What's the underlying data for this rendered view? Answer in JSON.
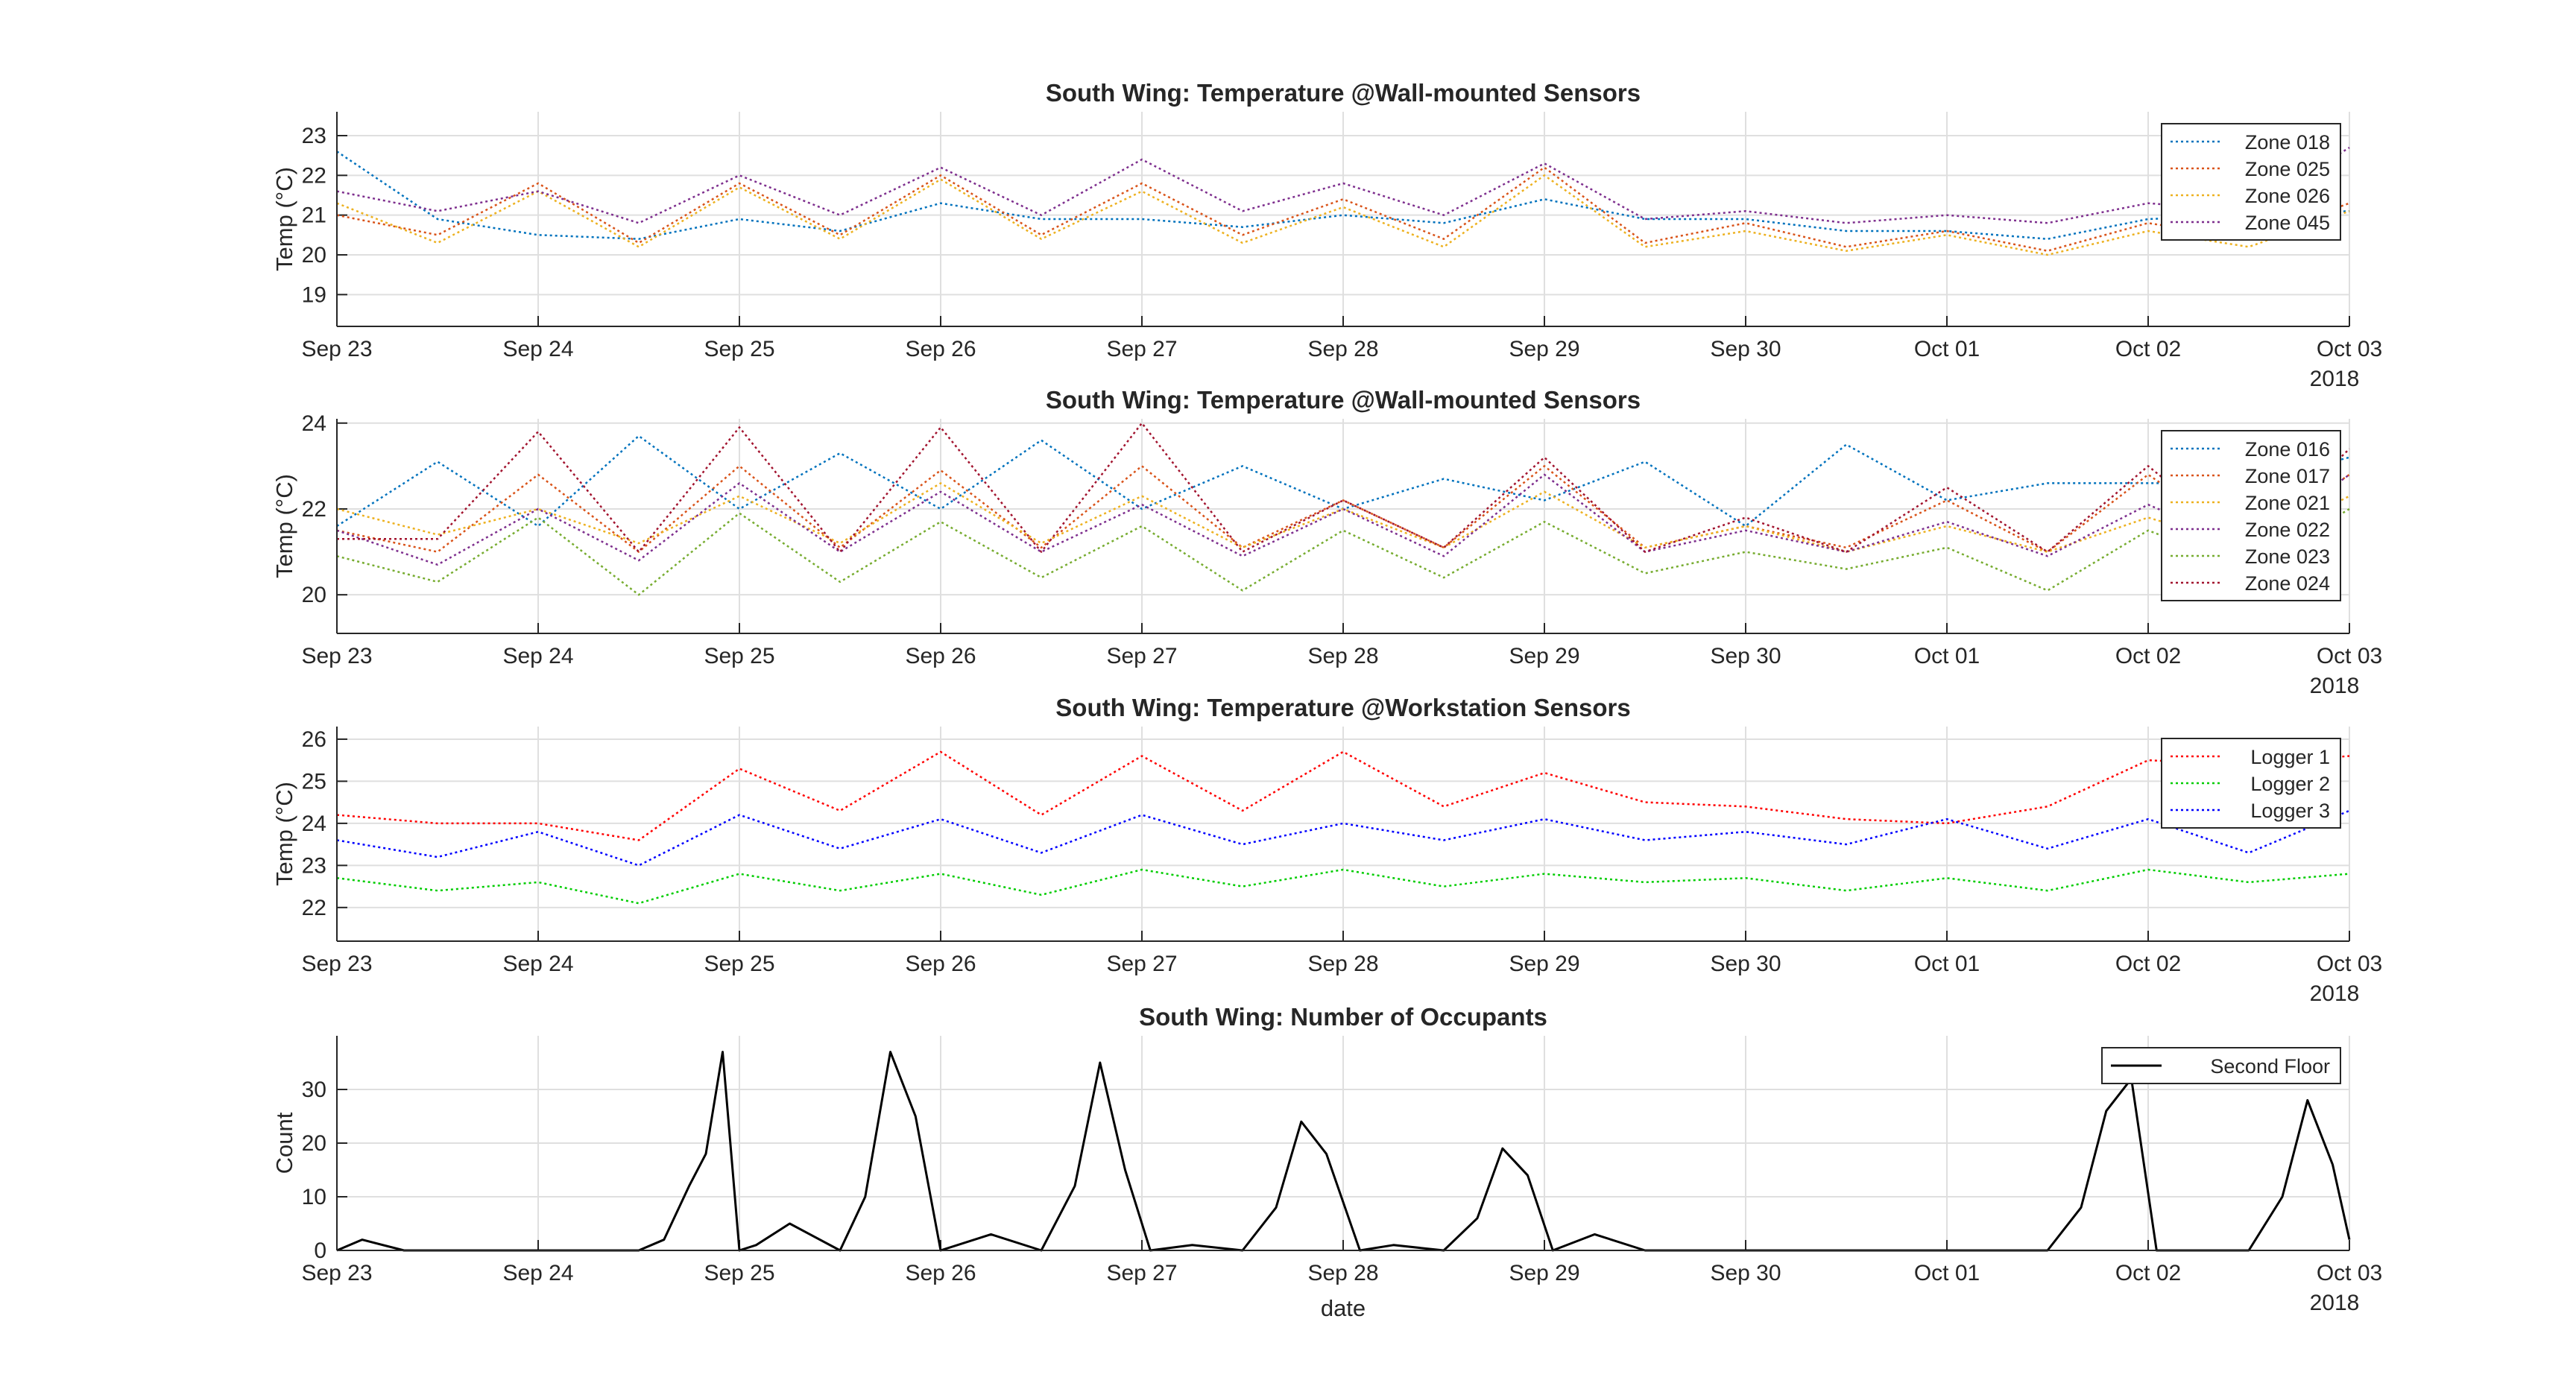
{
  "figure": {
    "x_tick_labels": [
      "Sep 23",
      "Sep 24",
      "Sep 25",
      "Sep 26",
      "Sep 27",
      "Sep 28",
      "Sep 29",
      "Sep 30",
      "Oct 01",
      "Oct 02",
      "Oct 03"
    ],
    "year_label": "2018",
    "bottom_xlabel": "date"
  },
  "chart_data": [
    {
      "type": "line",
      "title": "South Wing: Temperature @Wall-mounted Sensors",
      "xlabel": "",
      "ylabel": "Temp (°C)",
      "xlim": [
        "2018-09-23",
        "2018-10-03"
      ],
      "ylim": [
        18.2,
        23.6
      ],
      "yticks": [
        19,
        20,
        21,
        22,
        23
      ],
      "grid": true,
      "legend_location": "top-right",
      "line_style": "dotted",
      "series": [
        {
          "name": "Zone 018",
          "color": "#0072BD",
          "x": [
            "2018-09-23 00:00",
            "2018-09-23 12:00",
            "2018-09-24 00:00",
            "2018-09-24 12:00",
            "2018-09-25 00:00",
            "2018-09-25 12:00",
            "2018-09-26 00:00",
            "2018-09-26 12:00",
            "2018-09-27 00:00",
            "2018-09-27 12:00",
            "2018-09-28 00:00",
            "2018-09-28 12:00",
            "2018-09-29 00:00",
            "2018-09-29 12:00",
            "2018-09-30 00:00",
            "2018-09-30 12:00",
            "2018-10-01 00:00",
            "2018-10-01 12:00",
            "2018-10-02 00:00",
            "2018-10-02 12:00",
            "2018-10-03 00:00"
          ],
          "y": [
            22.6,
            20.9,
            20.5,
            20.4,
            20.9,
            20.6,
            21.3,
            20.9,
            20.9,
            20.7,
            21.0,
            20.8,
            21.4,
            20.9,
            20.9,
            20.6,
            20.6,
            20.4,
            20.9,
            21.0,
            21.1
          ]
        },
        {
          "name": "Zone 025",
          "color": "#D95319",
          "x": [
            "2018-09-23 00:00",
            "2018-09-23 12:00",
            "2018-09-24 00:00",
            "2018-09-24 12:00",
            "2018-09-25 00:00",
            "2018-09-25 12:00",
            "2018-09-26 00:00",
            "2018-09-26 12:00",
            "2018-09-27 00:00",
            "2018-09-27 12:00",
            "2018-09-28 00:00",
            "2018-09-28 12:00",
            "2018-09-29 00:00",
            "2018-09-29 12:00",
            "2018-09-30 00:00",
            "2018-09-30 12:00",
            "2018-10-01 00:00",
            "2018-10-01 12:00",
            "2018-10-02 00:00",
            "2018-10-02 12:00",
            "2018-10-03 00:00"
          ],
          "y": [
            21.0,
            20.5,
            21.8,
            20.3,
            21.8,
            20.5,
            22.0,
            20.5,
            21.8,
            20.5,
            21.4,
            20.4,
            22.2,
            20.3,
            20.8,
            20.2,
            20.6,
            20.1,
            20.8,
            20.4,
            21.3
          ]
        },
        {
          "name": "Zone 026",
          "color": "#EDB120",
          "x": [
            "2018-09-23 00:00",
            "2018-09-23 12:00",
            "2018-09-24 00:00",
            "2018-09-24 12:00",
            "2018-09-25 00:00",
            "2018-09-25 12:00",
            "2018-09-26 00:00",
            "2018-09-26 12:00",
            "2018-09-27 00:00",
            "2018-09-27 12:00",
            "2018-09-28 00:00",
            "2018-09-28 12:00",
            "2018-09-29 00:00",
            "2018-09-29 12:00",
            "2018-09-30 00:00",
            "2018-09-30 12:00",
            "2018-10-01 00:00",
            "2018-10-01 12:00",
            "2018-10-02 00:00",
            "2018-10-02 12:00",
            "2018-10-03 00:00"
          ],
          "y": [
            21.3,
            20.3,
            21.6,
            20.2,
            21.7,
            20.4,
            21.9,
            20.4,
            21.6,
            20.3,
            21.2,
            20.2,
            22.0,
            20.2,
            20.6,
            20.1,
            20.5,
            20.0,
            20.6,
            20.2,
            21.1
          ]
        },
        {
          "name": "Zone 045",
          "color": "#7E2F8E",
          "x": [
            "2018-09-23 00:00",
            "2018-09-23 12:00",
            "2018-09-24 00:00",
            "2018-09-24 12:00",
            "2018-09-25 00:00",
            "2018-09-25 12:00",
            "2018-09-26 00:00",
            "2018-09-26 12:00",
            "2018-09-27 00:00",
            "2018-09-27 12:00",
            "2018-09-28 00:00",
            "2018-09-28 12:00",
            "2018-09-29 00:00",
            "2018-09-29 12:00",
            "2018-09-30 00:00",
            "2018-09-30 12:00",
            "2018-10-01 00:00",
            "2018-10-01 12:00",
            "2018-10-02 00:00",
            "2018-10-02 12:00",
            "2018-10-03 00:00"
          ],
          "y": [
            21.6,
            21.1,
            21.6,
            20.8,
            22.0,
            21.0,
            22.2,
            21.0,
            22.4,
            21.1,
            21.8,
            21.0,
            22.3,
            20.9,
            21.1,
            20.8,
            21.0,
            20.8,
            21.3,
            21.1,
            22.7
          ]
        }
      ]
    },
    {
      "type": "line",
      "title": "South Wing: Temperature @Wall-mounted Sensors",
      "xlabel": "",
      "ylabel": "Temp (°C)",
      "xlim": [
        "2018-09-23",
        "2018-10-03"
      ],
      "ylim": [
        19.1,
        24.1
      ],
      "yticks": [
        20,
        22,
        24
      ],
      "grid": true,
      "legend_location": "top-right",
      "line_style": "dotted",
      "series": [
        {
          "name": "Zone 016",
          "color": "#0072BD",
          "x": [
            "2018-09-23 00:00",
            "2018-09-23 12:00",
            "2018-09-24 00:00",
            "2018-09-24 12:00",
            "2018-09-25 00:00",
            "2018-09-25 12:00",
            "2018-09-26 00:00",
            "2018-09-26 12:00",
            "2018-09-27 00:00",
            "2018-09-27 12:00",
            "2018-09-28 00:00",
            "2018-09-28 12:00",
            "2018-09-29 00:00",
            "2018-09-29 12:00",
            "2018-09-30 00:00",
            "2018-09-30 12:00",
            "2018-10-01 00:00",
            "2018-10-01 12:00",
            "2018-10-02 00:00",
            "2018-10-02 12:00",
            "2018-10-03 00:00"
          ],
          "y": [
            21.6,
            23.1,
            21.6,
            23.7,
            22.0,
            23.3,
            22.0,
            23.6,
            22.0,
            23.0,
            22.0,
            22.7,
            22.2,
            23.1,
            21.6,
            23.5,
            22.2,
            22.6,
            22.6,
            22.6,
            23.2
          ]
        },
        {
          "name": "Zone 017",
          "color": "#D95319",
          "x": [
            "2018-09-23 00:00",
            "2018-09-23 12:00",
            "2018-09-24 00:00",
            "2018-09-24 12:00",
            "2018-09-25 00:00",
            "2018-09-25 12:00",
            "2018-09-26 00:00",
            "2018-09-26 12:00",
            "2018-09-27 00:00",
            "2018-09-27 12:00",
            "2018-09-28 00:00",
            "2018-09-28 12:00",
            "2018-09-29 00:00",
            "2018-09-29 12:00",
            "2018-09-30 00:00",
            "2018-09-30 12:00",
            "2018-10-01 00:00",
            "2018-10-01 12:00",
            "2018-10-02 00:00",
            "2018-10-02 12:00",
            "2018-10-03 00:00"
          ],
          "y": [
            21.5,
            21.0,
            22.8,
            21.0,
            23.0,
            21.1,
            22.9,
            21.1,
            23.0,
            21.1,
            22.2,
            21.1,
            23.0,
            21.1,
            21.6,
            21.1,
            22.2,
            21.0,
            22.8,
            21.2,
            22.8
          ]
        },
        {
          "name": "Zone 021",
          "color": "#EDB120",
          "x": [
            "2018-09-23 00:00",
            "2018-09-23 12:00",
            "2018-09-24 00:00",
            "2018-09-24 12:00",
            "2018-09-25 00:00",
            "2018-09-25 12:00",
            "2018-09-26 00:00",
            "2018-09-26 12:00",
            "2018-09-27 00:00",
            "2018-09-27 12:00",
            "2018-09-28 00:00",
            "2018-09-28 12:00",
            "2018-09-29 00:00",
            "2018-09-29 12:00",
            "2018-09-30 00:00",
            "2018-09-30 12:00",
            "2018-10-01 00:00",
            "2018-10-01 12:00",
            "2018-10-02 00:00",
            "2018-10-02 12:00",
            "2018-10-03 00:00"
          ],
          "y": [
            22.0,
            21.4,
            22.0,
            21.2,
            22.3,
            21.2,
            22.6,
            21.2,
            22.3,
            21.1,
            22.0,
            21.1,
            22.4,
            21.1,
            21.6,
            21.0,
            21.6,
            21.0,
            21.8,
            21.1,
            22.3
          ]
        },
        {
          "name": "Zone 022",
          "color": "#7E2F8E",
          "x": [
            "2018-09-23 00:00",
            "2018-09-23 12:00",
            "2018-09-24 00:00",
            "2018-09-24 12:00",
            "2018-09-25 00:00",
            "2018-09-25 12:00",
            "2018-09-26 00:00",
            "2018-09-26 12:00",
            "2018-09-27 00:00",
            "2018-09-27 12:00",
            "2018-09-28 00:00",
            "2018-09-28 12:00",
            "2018-09-29 00:00",
            "2018-09-29 12:00",
            "2018-09-30 00:00",
            "2018-09-30 12:00",
            "2018-10-01 00:00",
            "2018-10-01 12:00",
            "2018-10-02 00:00",
            "2018-10-02 12:00",
            "2018-10-03 00:00"
          ],
          "y": [
            21.5,
            20.7,
            22.0,
            20.8,
            22.6,
            21.0,
            22.4,
            21.0,
            22.1,
            20.9,
            22.0,
            20.9,
            22.8,
            21.0,
            21.5,
            21.0,
            21.7,
            20.9,
            22.1,
            21.1,
            22.8
          ]
        },
        {
          "name": "Zone 023",
          "color": "#77AC30",
          "x": [
            "2018-09-23 00:00",
            "2018-09-23 12:00",
            "2018-09-24 00:00",
            "2018-09-24 12:00",
            "2018-09-25 00:00",
            "2018-09-25 12:00",
            "2018-09-26 00:00",
            "2018-09-26 12:00",
            "2018-09-27 00:00",
            "2018-09-27 12:00",
            "2018-09-28 00:00",
            "2018-09-28 12:00",
            "2018-09-29 00:00",
            "2018-09-29 12:00",
            "2018-09-30 00:00",
            "2018-09-30 12:00",
            "2018-10-01 00:00",
            "2018-10-01 12:00",
            "2018-10-02 00:00",
            "2018-10-02 12:00",
            "2018-10-03 00:00"
          ],
          "y": [
            20.9,
            20.3,
            21.8,
            20.0,
            21.9,
            20.3,
            21.7,
            20.4,
            21.6,
            20.1,
            21.5,
            20.4,
            21.7,
            20.5,
            21.0,
            20.6,
            21.1,
            20.1,
            21.5,
            20.6,
            22.0
          ]
        },
        {
          "name": "Zone 024",
          "color": "#A2142F",
          "x": [
            "2018-09-23 00:00",
            "2018-09-23 12:00",
            "2018-09-24 00:00",
            "2018-09-24 12:00",
            "2018-09-25 00:00",
            "2018-09-25 12:00",
            "2018-09-26 00:00",
            "2018-09-26 12:00",
            "2018-09-27 00:00",
            "2018-09-27 12:00",
            "2018-09-28 00:00",
            "2018-09-28 12:00",
            "2018-09-29 00:00",
            "2018-09-29 12:00",
            "2018-09-30 00:00",
            "2018-09-30 12:00",
            "2018-10-01 00:00",
            "2018-10-01 12:00",
            "2018-10-02 00:00",
            "2018-10-02 12:00",
            "2018-10-03 00:00"
          ],
          "y": [
            21.3,
            21.3,
            23.8,
            21.0,
            23.9,
            21.0,
            23.9,
            21.0,
            24.0,
            21.0,
            22.2,
            21.1,
            23.2,
            21.0,
            21.8,
            21.0,
            22.5,
            21.0,
            23.0,
            21.1,
            23.4
          ]
        }
      ]
    },
    {
      "type": "line",
      "title": "South Wing: Temperature @Workstation Sensors",
      "xlabel": "",
      "ylabel": "Temp (°C)",
      "xlim": [
        "2018-09-23",
        "2018-10-03"
      ],
      "ylim": [
        21.2,
        26.3
      ],
      "yticks": [
        22,
        23,
        24,
        25,
        26
      ],
      "grid": true,
      "legend_location": "top-right",
      "line_style": "dotted",
      "series": [
        {
          "name": "Logger 1",
          "color": "#FF0000",
          "x": [
            "2018-09-23 00:00",
            "2018-09-23 12:00",
            "2018-09-24 00:00",
            "2018-09-24 12:00",
            "2018-09-25 00:00",
            "2018-09-25 12:00",
            "2018-09-26 00:00",
            "2018-09-26 12:00",
            "2018-09-27 00:00",
            "2018-09-27 12:00",
            "2018-09-28 00:00",
            "2018-09-28 12:00",
            "2018-09-29 00:00",
            "2018-09-29 12:00",
            "2018-09-30 00:00",
            "2018-09-30 12:00",
            "2018-10-01 00:00",
            "2018-10-01 12:00",
            "2018-10-02 00:00",
            "2018-10-02 12:00",
            "2018-10-03 00:00"
          ],
          "y": [
            24.2,
            24.0,
            24.0,
            23.6,
            25.3,
            24.3,
            25.7,
            24.2,
            25.6,
            24.3,
            25.7,
            24.4,
            25.2,
            24.5,
            24.4,
            24.1,
            24.0,
            24.4,
            25.5,
            25.4,
            25.6
          ]
        },
        {
          "name": "Logger 2",
          "color": "#00CC00",
          "x": [
            "2018-09-23 00:00",
            "2018-09-23 12:00",
            "2018-09-24 00:00",
            "2018-09-24 12:00",
            "2018-09-25 00:00",
            "2018-09-25 12:00",
            "2018-09-26 00:00",
            "2018-09-26 12:00",
            "2018-09-27 00:00",
            "2018-09-27 12:00",
            "2018-09-28 00:00",
            "2018-09-28 12:00",
            "2018-09-29 00:00",
            "2018-09-29 12:00",
            "2018-09-30 00:00",
            "2018-09-30 12:00",
            "2018-10-01 00:00",
            "2018-10-01 12:00",
            "2018-10-02 00:00",
            "2018-10-02 12:00",
            "2018-10-03 00:00"
          ],
          "y": [
            22.7,
            22.4,
            22.6,
            22.1,
            22.8,
            22.4,
            22.8,
            22.3,
            22.9,
            22.5,
            22.9,
            22.5,
            22.8,
            22.6,
            22.7,
            22.4,
            22.7,
            22.4,
            22.9,
            22.6,
            22.8
          ]
        },
        {
          "name": "Logger 3",
          "color": "#0000FF",
          "x": [
            "2018-09-23 00:00",
            "2018-09-23 12:00",
            "2018-09-24 00:00",
            "2018-09-24 12:00",
            "2018-09-25 00:00",
            "2018-09-25 12:00",
            "2018-09-26 00:00",
            "2018-09-26 12:00",
            "2018-09-27 00:00",
            "2018-09-27 12:00",
            "2018-09-28 00:00",
            "2018-09-28 12:00",
            "2018-09-29 00:00",
            "2018-09-29 12:00",
            "2018-09-30 00:00",
            "2018-09-30 12:00",
            "2018-10-01 00:00",
            "2018-10-01 12:00",
            "2018-10-02 00:00",
            "2018-10-02 12:00",
            "2018-10-03 00:00"
          ],
          "y": [
            23.6,
            23.2,
            23.8,
            23.0,
            24.2,
            23.4,
            24.1,
            23.3,
            24.2,
            23.5,
            24.0,
            23.6,
            24.1,
            23.6,
            23.8,
            23.5,
            24.1,
            23.4,
            24.1,
            23.3,
            24.3
          ]
        }
      ]
    },
    {
      "type": "line",
      "title": "South Wing: Number of Occupants",
      "xlabel": "date",
      "ylabel": "Count",
      "xlim": [
        "2018-09-23",
        "2018-10-03"
      ],
      "ylim": [
        0,
        40
      ],
      "yticks": [
        0,
        10,
        20,
        30
      ],
      "grid": true,
      "legend_location": "top-right",
      "line_style": "solid",
      "series": [
        {
          "name": "Second Floor",
          "color": "#000000",
          "x": [
            "2018-09-23 00:00",
            "2018-09-23 03:00",
            "2018-09-23 08:00",
            "2018-09-24 12:00",
            "2018-09-24 15:00",
            "2018-09-24 18:00",
            "2018-09-24 20:00",
            "2018-09-24 22:00",
            "2018-09-25 00:00",
            "2018-09-25 02:00",
            "2018-09-25 06:00",
            "2018-09-25 12:00",
            "2018-09-25 15:00",
            "2018-09-25 18:00",
            "2018-09-25 21:00",
            "2018-09-26 00:00",
            "2018-09-26 06:00",
            "2018-09-26 12:00",
            "2018-09-26 16:00",
            "2018-09-26 19:00",
            "2018-09-26 22:00",
            "2018-09-27 01:00",
            "2018-09-27 06:00",
            "2018-09-27 12:00",
            "2018-09-27 16:00",
            "2018-09-27 19:00",
            "2018-09-27 22:00",
            "2018-09-28 02:00",
            "2018-09-28 06:00",
            "2018-09-28 12:00",
            "2018-09-28 16:00",
            "2018-09-28 19:00",
            "2018-09-28 22:00",
            "2018-09-29 01:00",
            "2018-09-29 06:00",
            "2018-09-29 12:00",
            "2018-10-01 12:00",
            "2018-10-01 16:00",
            "2018-10-01 19:00",
            "2018-10-01 22:00",
            "2018-10-02 01:00",
            "2018-10-02 06:00",
            "2018-10-02 12:00",
            "2018-10-02 16:00",
            "2018-10-02 19:00",
            "2018-10-02 22:00",
            "2018-10-03 00:00"
          ],
          "y": [
            0,
            2,
            0,
            0,
            2,
            12,
            18,
            37,
            0,
            1,
            5,
            0,
            10,
            37,
            25,
            0,
            3,
            0,
            12,
            35,
            15,
            0,
            1,
            0,
            8,
            24,
            18,
            0,
            1,
            0,
            6,
            19,
            14,
            0,
            3,
            0,
            0,
            8,
            26,
            32,
            0,
            0,
            0,
            10,
            28,
            16,
            2
          ]
        }
      ]
    }
  ]
}
